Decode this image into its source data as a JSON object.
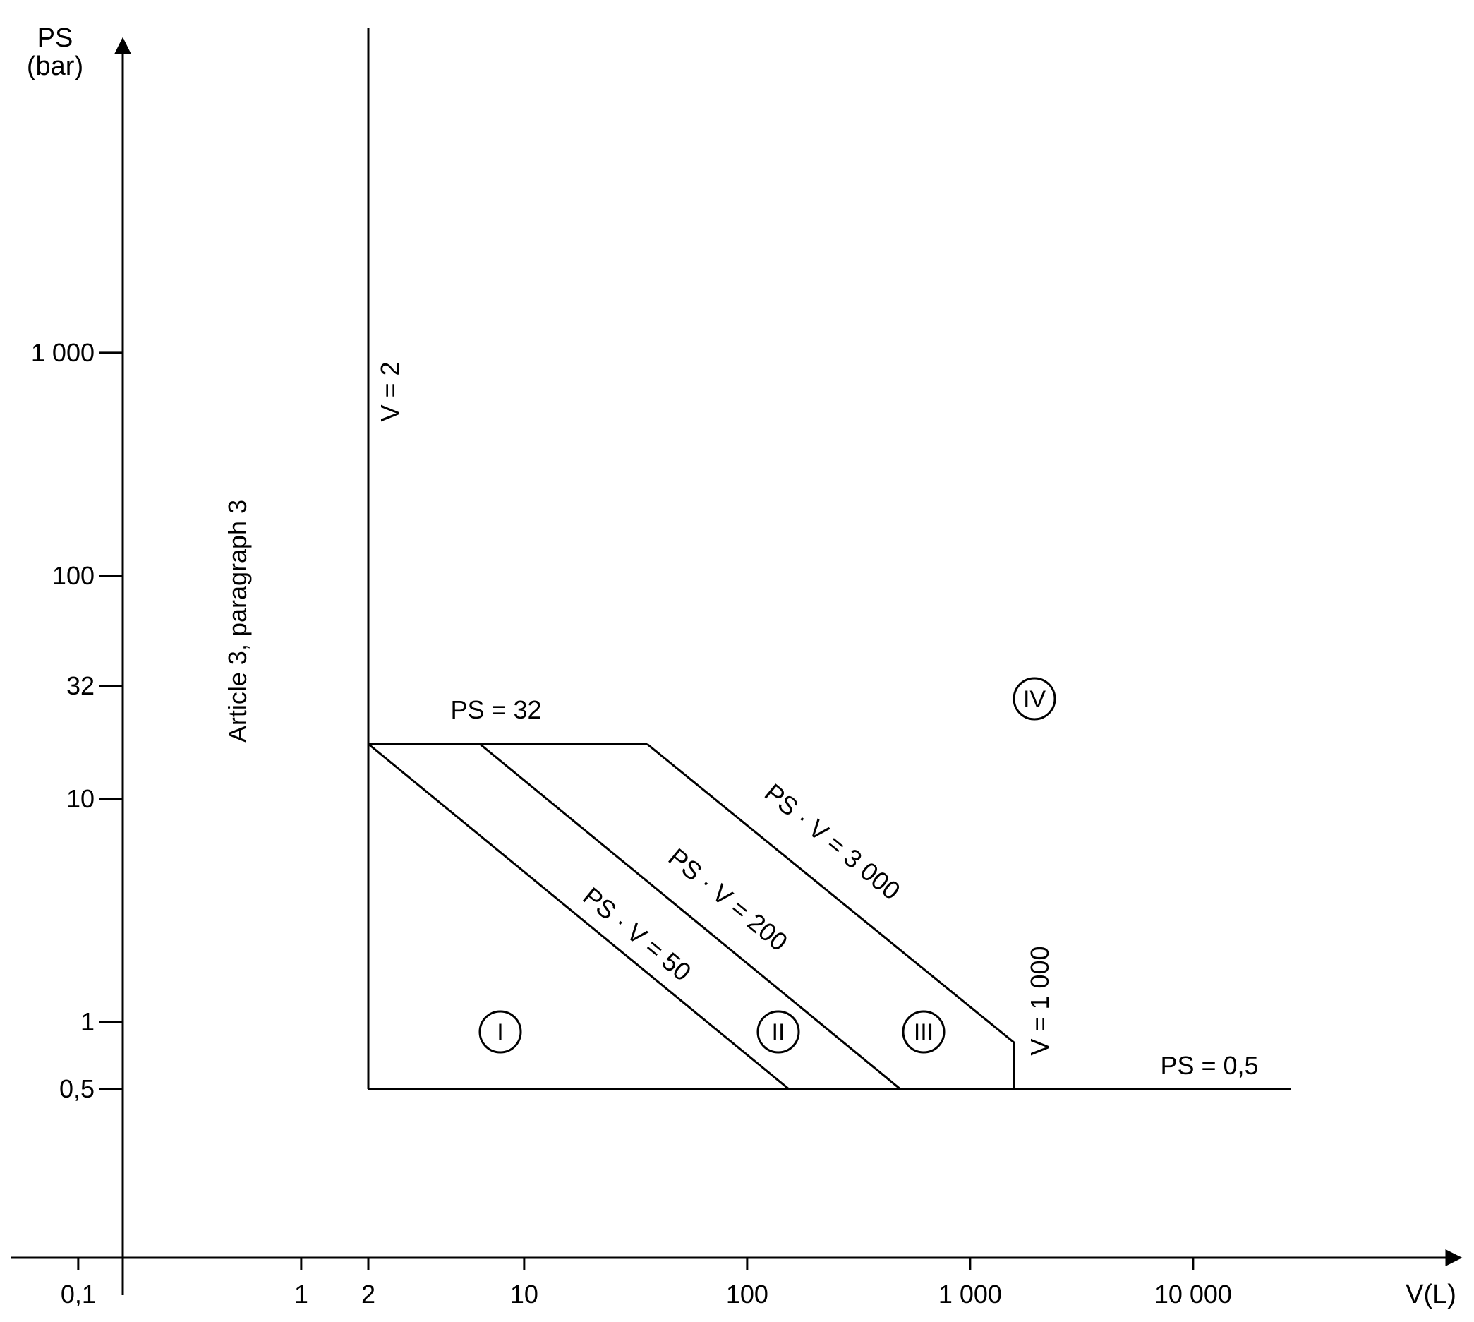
{
  "axes": {
    "y_title_line1": "PS",
    "y_title_line2": "(bar)",
    "x_title": "V(L)",
    "x_ticks": [
      {
        "label": "0,1",
        "value": 0.1
      },
      {
        "label": "1",
        "value": 1
      },
      {
        "label": "2",
        "value": 2
      },
      {
        "label": "10",
        "value": 10
      },
      {
        "label": "100",
        "value": 100
      },
      {
        "label": "1 000",
        "value": 1000
      },
      {
        "label": "10 000",
        "value": 10000
      }
    ],
    "y_ticks": [
      {
        "label": "1 000",
        "value": 1000
      },
      {
        "label": "100",
        "value": 100
      },
      {
        "label": "32",
        "value": 32
      },
      {
        "label": "10",
        "value": 10
      },
      {
        "label": "1",
        "value": 1
      },
      {
        "label": "0,5",
        "value": 0.5
      }
    ],
    "x_scale": "log",
    "y_scale": "log"
  },
  "lines": {
    "v2": "V = 2",
    "ps32": "PS = 32",
    "ps05": "PS = 0,5",
    "v1000": "V = 1 000",
    "pv50": "PS · V = 50",
    "pv200": "PS · V = 200",
    "pv3000": "PS · V = 3 000"
  },
  "region_article": "Article 3, paragraph 3",
  "categories": [
    "I",
    "II",
    "III",
    "IV"
  ]
}
